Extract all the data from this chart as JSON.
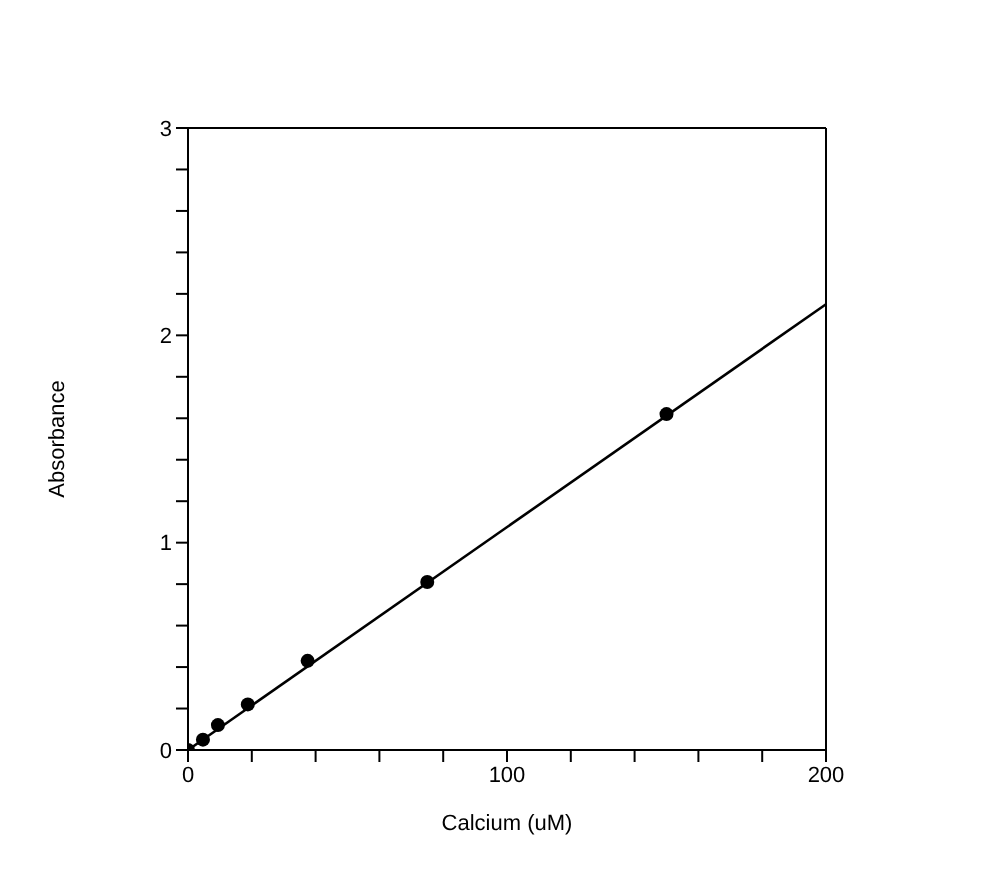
{
  "chart_data": {
    "type": "scatter",
    "xlabel": "Calcium (uM)",
    "ylabel": "Absorbance",
    "x": [
      0,
      4.69,
      9.38,
      18.75,
      37.5,
      75,
      150
    ],
    "series": [
      {
        "color": "#000000",
        "values": [
          0,
          0.05,
          0.12,
          0.22,
          0.43,
          0.81,
          1.62
        ],
        "marker": "circle"
      },
      {
        "type": "line",
        "color": "#000000",
        "x": [
          0,
          200
        ],
        "values": [
          0,
          2.15
        ],
        "marker": "none",
        "line_style": "solid"
      }
    ],
    "xlim": [
      0,
      200
    ],
    "xticks": [
      0,
      {
        "value": 20,
        "label": null
      },
      {
        "value": 40,
        "label": null
      },
      {
        "value": 60,
        "label": null
      },
      {
        "value": 80,
        "label": null
      },
      100,
      {
        "value": 120,
        "label": null
      },
      {
        "value": 140,
        "label": null
      },
      {
        "value": 160,
        "label": null
      },
      {
        "value": 180,
        "label": null
      },
      200
    ],
    "ylim": [
      0,
      3
    ],
    "yticks": [
      0,
      {
        "value": 0.2,
        "label": null
      },
      {
        "value": 0.4,
        "label": null
      },
      {
        "value": 0.6,
        "label": null
      },
      {
        "value": 0.8,
        "label": null
      },
      1,
      {
        "value": 1.2,
        "label": null
      },
      {
        "value": 1.4,
        "label": null
      },
      {
        "value": 1.6,
        "label": null
      },
      {
        "value": 1.8,
        "label": null
      },
      2,
      {
        "value": 2.2,
        "label": null
      },
      {
        "value": 2.4,
        "label": null
      },
      {
        "value": 2.6,
        "label": null
      },
      {
        "value": 2.8,
        "label": null
      },
      3
    ],
    "grid": false,
    "legend": false
  }
}
